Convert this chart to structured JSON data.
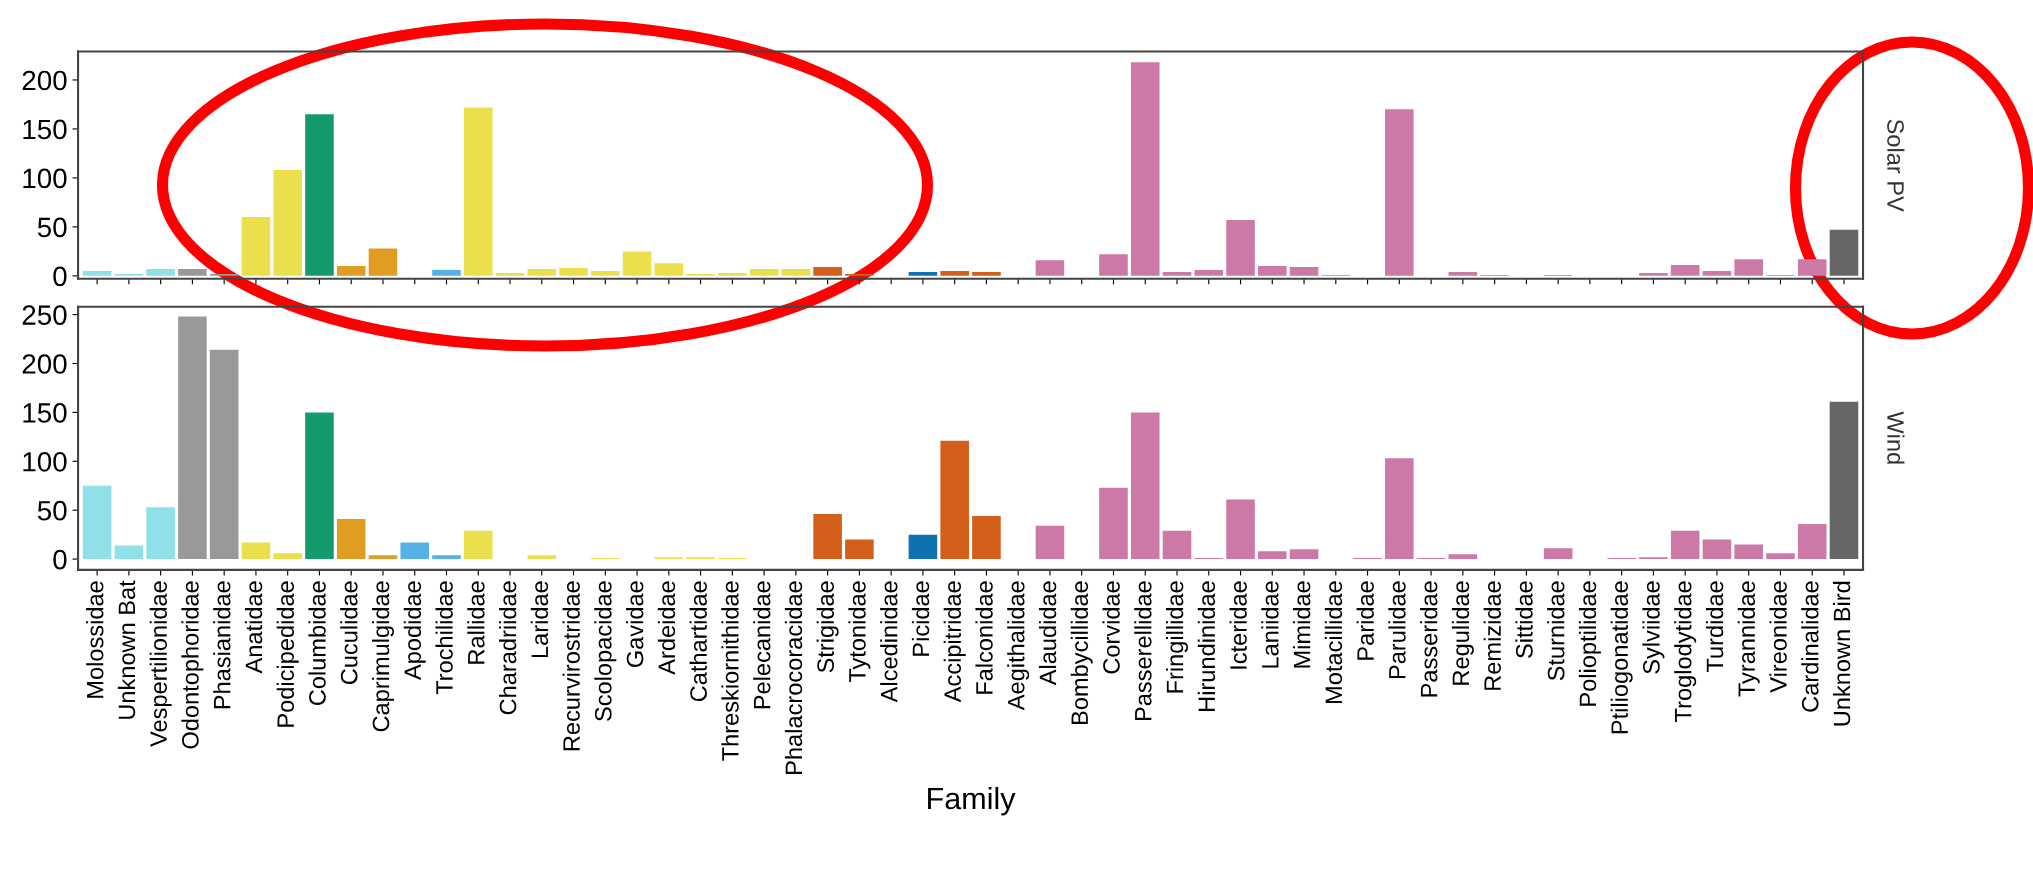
{
  "chart_data": [
    {
      "type": "bar",
      "y2label": "Solar PV",
      "tick_labels": "y",
      "grid": false,
      "categories": [
        "Molossidae",
        "Unknown Bat",
        "Vespertilionidae",
        "Odontophoridae",
        "Phasianidae",
        "Anatidae",
        "Podicipedidae",
        "Columbidae",
        "Cuculidae",
        "Caprimulgidae",
        "Apodidae",
        "Trochilidae",
        "Rallidae",
        "Charadriidae",
        "Laridae",
        "Recurvirostridae",
        "Scolopacidae",
        "Gavidae",
        "Ardeidae",
        "Cathartidae",
        "Threskiornithidae",
        "Pelecanidae",
        "Phalacrocoracidae",
        "Strigidae",
        "Tytonidae",
        "Alcedinidae",
        "Picidae",
        "Accipitridae",
        "Falconidae",
        "Aegithalidae",
        "Alaudidae",
        "Bombycillidae",
        "Corvidae",
        "Passerellidae",
        "Fringillidae",
        "Hirundinidae",
        "Icteridae",
        "Laniidae",
        "Mimidae",
        "Motacillidae",
        "Paridae",
        "Parulidae",
        "Passeridae",
        "Regulidae",
        "Remizidae",
        "Sittidae",
        "Sturnidae",
        "Polioptilidae",
        "Ptiliogonatidae",
        "Sylviidae",
        "Troglodytidae",
        "Turdidae",
        "Tyrannidae",
        "Vireonidae",
        "Cardinalidae",
        "Unknown Bird"
      ],
      "colors": [
        "#8fe0e8",
        "#8fe0e8",
        "#8fe0e8",
        "#999999",
        "#999999",
        "#ebe04c",
        "#ebe04c",
        "#139b6e",
        "#e09d24",
        "#e09d24",
        "#56b1e6",
        "#56b1e6",
        "#ebe04c",
        "#ebe04c",
        "#ebe04c",
        "#ebe04c",
        "#ebe04c",
        "#ebe04c",
        "#ebe04c",
        "#ebe04c",
        "#ebe04c",
        "#ebe04c",
        "#ebe04c",
        "#d35f1a",
        "#d35f1a",
        "#0f72b0",
        "#0f72b0",
        "#d35f1a",
        "#d35f1a",
        "#cc79a7",
        "#cc79a7",
        "#cc79a7",
        "#cc79a7",
        "#cc79a7",
        "#cc79a7",
        "#cc79a7",
        "#cc79a7",
        "#cc79a7",
        "#cc79a7",
        "#cc79a7",
        "#cc79a7",
        "#cc79a7",
        "#cc79a7",
        "#cc79a7",
        "#cc79a7",
        "#cc79a7",
        "#cc79a7",
        "#cc79a7",
        "#cc79a7",
        "#cc79a7",
        "#cc79a7",
        "#cc79a7",
        "#cc79a7",
        "#cc79a7",
        "#cc79a7",
        "#666666"
      ],
      "values": [
        5,
        2,
        7,
        7,
        2,
        60,
        108,
        165,
        10,
        28,
        0,
        6,
        172,
        3,
        7,
        8,
        5,
        25,
        13,
        2,
        3,
        7,
        7,
        9,
        2,
        0,
        4,
        5,
        4,
        0,
        16,
        0,
        22,
        218,
        4,
        6,
        57,
        10,
        9,
        1,
        0,
        170,
        0,
        4,
        1,
        0,
        1,
        0,
        0,
        3,
        11,
        5,
        17,
        1,
        17,
        47
      ],
      "ylim": [
        -3,
        229
      ],
      "yticks": [
        0,
        50,
        100,
        150,
        200
      ]
    },
    {
      "type": "bar",
      "y2label": "Wind",
      "xlabel": "Family",
      "grid": false,
      "categories": [
        "Molossidae",
        "Unknown Bat",
        "Vespertilionidae",
        "Odontophoridae",
        "Phasianidae",
        "Anatidae",
        "Podicipedidae",
        "Columbidae",
        "Cuculidae",
        "Caprimulgidae",
        "Apodidae",
        "Trochilidae",
        "Rallidae",
        "Charadriidae",
        "Laridae",
        "Recurvirostridae",
        "Scolopacidae",
        "Gavidae",
        "Ardeidae",
        "Cathartidae",
        "Threskiornithidae",
        "Pelecanidae",
        "Phalacrocoracidae",
        "Strigidae",
        "Tytonidae",
        "Alcedinidae",
        "Picidae",
        "Accipitridae",
        "Falconidae",
        "Aegithalidae",
        "Alaudidae",
        "Bombycillidae",
        "Corvidae",
        "Passerellidae",
        "Fringillidae",
        "Hirundinidae",
        "Icteridae",
        "Laniidae",
        "Mimidae",
        "Motacillidae",
        "Paridae",
        "Parulidae",
        "Passeridae",
        "Regulidae",
        "Remizidae",
        "Sittidae",
        "Sturnidae",
        "Polioptilidae",
        "Ptiliogonatidae",
        "Sylviidae",
        "Troglodytidae",
        "Turdidae",
        "Tyrannidae",
        "Vireonidae",
        "Cardinalidae",
        "Unknown Bird"
      ],
      "colors": [
        "#8fe0e8",
        "#8fe0e8",
        "#8fe0e8",
        "#999999",
        "#999999",
        "#ebe04c",
        "#ebe04c",
        "#139b6e",
        "#e09d24",
        "#e09d24",
        "#56b1e6",
        "#56b1e6",
        "#ebe04c",
        "#ebe04c",
        "#ebe04c",
        "#ebe04c",
        "#ebe04c",
        "#ebe04c",
        "#ebe04c",
        "#ebe04c",
        "#ebe04c",
        "#ebe04c",
        "#ebe04c",
        "#d35f1a",
        "#d35f1a",
        "#0f72b0",
        "#0f72b0",
        "#d35f1a",
        "#d35f1a",
        "#cc79a7",
        "#cc79a7",
        "#cc79a7",
        "#cc79a7",
        "#cc79a7",
        "#cc79a7",
        "#cc79a7",
        "#cc79a7",
        "#cc79a7",
        "#cc79a7",
        "#cc79a7",
        "#cc79a7",
        "#cc79a7",
        "#cc79a7",
        "#cc79a7",
        "#cc79a7",
        "#cc79a7",
        "#cc79a7",
        "#cc79a7",
        "#cc79a7",
        "#cc79a7",
        "#cc79a7",
        "#cc79a7",
        "#cc79a7",
        "#cc79a7",
        "#cc79a7",
        "#666666"
      ],
      "values": [
        75,
        14,
        53,
        248,
        214,
        17,
        6,
        150,
        41,
        4,
        17,
        4,
        29,
        0,
        4,
        0,
        1,
        0,
        2,
        2,
        1,
        0,
        0,
        46,
        20,
        0,
        25,
        121,
        44,
        0,
        34,
        0,
        73,
        150,
        29,
        1,
        61,
        8,
        10,
        0,
        1,
        103,
        1,
        5,
        0,
        0,
        11,
        0,
        1,
        2,
        29,
        20,
        15,
        6,
        36,
        161
      ],
      "ylim": [
        -11,
        258
      ],
      "yticks": [
        0,
        50,
        100,
        150,
        200,
        250
      ]
    }
  ]
}
